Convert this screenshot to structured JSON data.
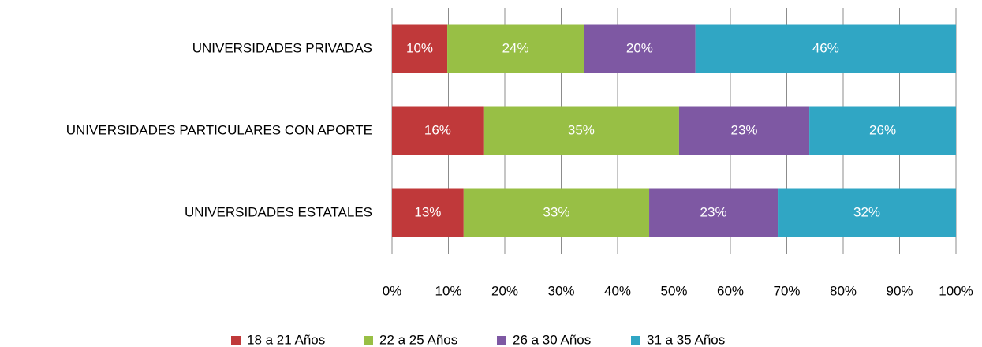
{
  "chart_data": {
    "type": "bar_stacked_horizontal",
    "categories": [
      "UNIVERSIDADES PRIVADAS",
      "UNIVERSIDADES PARTICULARES CON APORTE",
      "UNIVERSIDADES ESTATALES"
    ],
    "series": [
      {
        "name": "18 a 21 Años",
        "color": "#c0393a",
        "values": [
          9.8,
          16.2,
          12.7
        ],
        "value_labels": [
          "10%",
          "16%",
          "13%"
        ]
      },
      {
        "name": "22 a 25 Años",
        "color": "#98bf45",
        "values": [
          24.2,
          34.7,
          32.9
        ],
        "value_labels": [
          "24%",
          "35%",
          "33%"
        ]
      },
      {
        "name": "26 a 30 Años",
        "color": "#7e58a3",
        "values": [
          19.8,
          23.1,
          22.8
        ],
        "value_labels": [
          "20%",
          "23%",
          "23%"
        ]
      },
      {
        "name": "31 a 35 Años",
        "color": "#30a6c4",
        "values": [
          46.2,
          26.0,
          31.6
        ],
        "value_labels": [
          "46%",
          "26%",
          "32%"
        ]
      }
    ],
    "xlim": [
      0,
      100
    ],
    "xticks": [
      {
        "value": 0,
        "label": "0%"
      },
      {
        "value": 10,
        "label": "10%"
      },
      {
        "value": 20,
        "label": "20%"
      },
      {
        "value": 30,
        "label": "30%"
      },
      {
        "value": 40,
        "label": "40%"
      },
      {
        "value": 50,
        "label": "50%"
      },
      {
        "value": 60,
        "label": "60%"
      },
      {
        "value": 70,
        "label": "70%"
      },
      {
        "value": 80,
        "label": "80%"
      },
      {
        "value": 90,
        "label": "90%"
      },
      {
        "value": 100,
        "label": "100%"
      }
    ],
    "grid": true,
    "legend": "bottom"
  }
}
